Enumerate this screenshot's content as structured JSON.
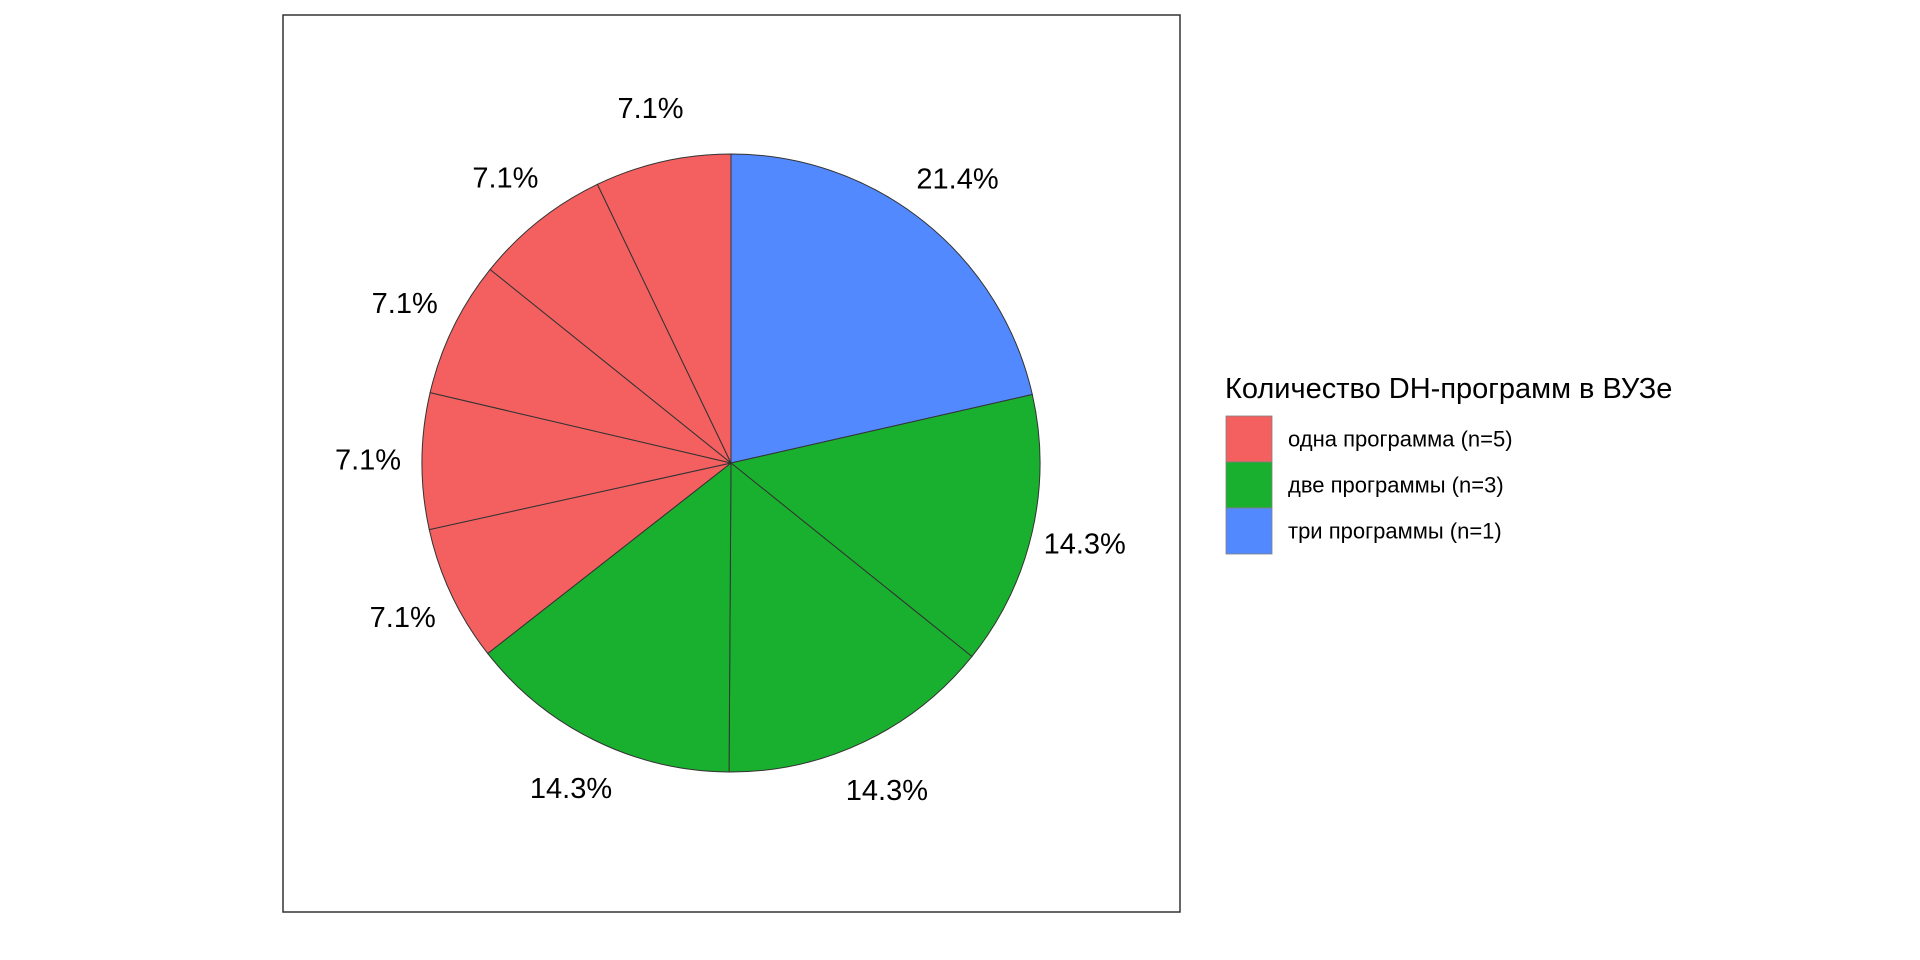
{
  "chart_data": {
    "type": "pie",
    "title": "",
    "start_angle_deg": 0,
    "direction": "clockwise",
    "slices": [
      {
        "group": "три программы (n=1)",
        "value": 21.4,
        "label": "21.4%"
      },
      {
        "group": "две программы (n=3)",
        "value": 14.3,
        "label": "14.3%"
      },
      {
        "group": "две программы (n=3)",
        "value": 14.3,
        "label": "14.3%"
      },
      {
        "group": "две программы (n=3)",
        "value": 14.3,
        "label": "14.3%"
      },
      {
        "group": "одна программа (n=5)",
        "value": 7.1,
        "label": "7.1%"
      },
      {
        "group": "одна программа (n=5)",
        "value": 7.1,
        "label": "7.1%"
      },
      {
        "group": "одна программа (n=5)",
        "value": 7.1,
        "label": "7.1%"
      },
      {
        "group": "одна программа (n=5)",
        "value": 7.1,
        "label": "7.1%"
      },
      {
        "group": "одна программа (n=5)",
        "value": 7.1,
        "label": "7.1%"
      }
    ],
    "legend": {
      "title": "Количество DH-программ в ВУЗе",
      "placement": "right",
      "entries": [
        {
          "label": "одна программа (n=5)",
          "color": "#F46060"
        },
        {
          "label": "две программы (n=3)",
          "color": "#1AB02F"
        },
        {
          "label": "три программы (n=1)",
          "color": "#5389FE"
        }
      ]
    },
    "slice_border_color": "#333333",
    "panel_border": true
  }
}
